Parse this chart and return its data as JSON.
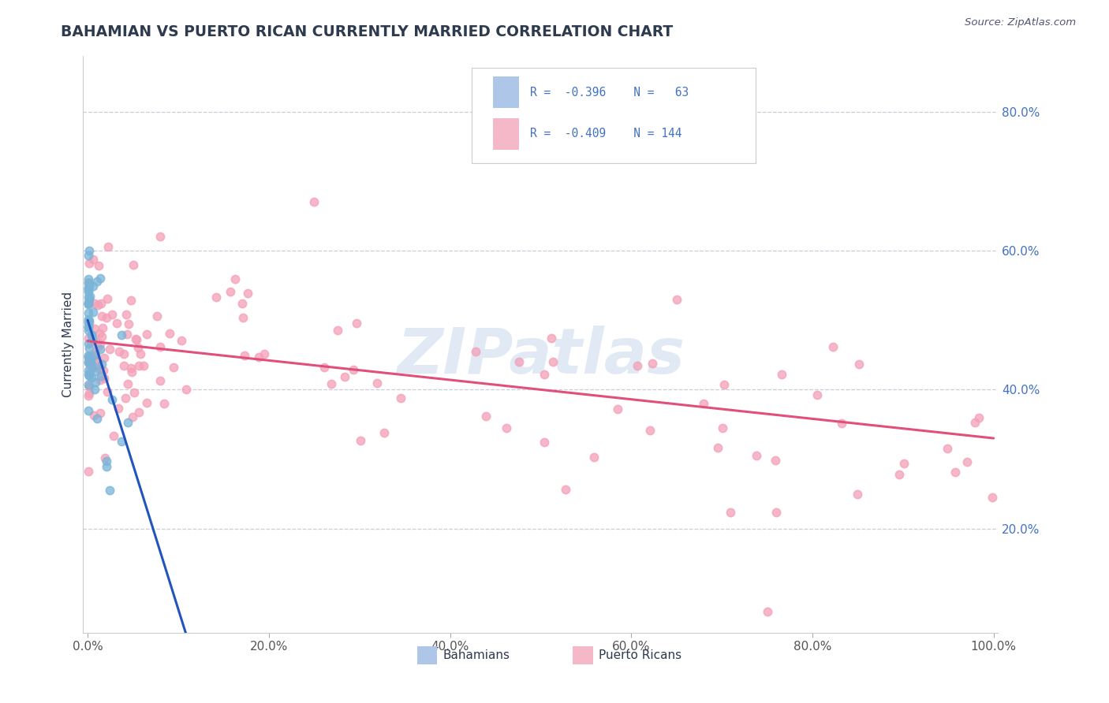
{
  "title": "BAHAMIAN VS PUERTO RICAN CURRENTLY MARRIED CORRELATION CHART",
  "source_text": "Source: ZipAtlas.com",
  "ylabel": "Currently Married",
  "watermark": "ZIPatlas",
  "xlim": [
    -0.005,
    1.005
  ],
  "ylim": [
    0.05,
    0.88
  ],
  "x_ticks": [
    0.0,
    0.2,
    0.4,
    0.6,
    0.8,
    1.0
  ],
  "x_tick_labels": [
    "0.0%",
    "20.0%",
    "40.0%",
    "60.0%",
    "80.0%",
    "100.0%"
  ],
  "y_ticks": [
    0.2,
    0.4,
    0.6,
    0.8
  ],
  "y_tick_labels": [
    "20.0%",
    "40.0%",
    "60.0%",
    "80.0%"
  ],
  "bahamian_color": "#7ab4d8",
  "puerto_rican_color": "#f4a0b8",
  "bahamian_line_color": "#2255bb",
  "puerto_rican_line_color": "#e0507a",
  "grid_color": "#c8cfd8",
  "background_color": "#ffffff",
  "title_color": "#2e3a4e",
  "legend_box_color": "#aec6e8",
  "legend_box_pink": "#f4b8c8",
  "legend_text_color": "#4472c4",
  "r_bahamian": -0.396,
  "n_bahamian": 63,
  "r_puerto_rican": -0.409,
  "n_puerto_rican": 144,
  "seed_bah": 15,
  "seed_pr": 99
}
